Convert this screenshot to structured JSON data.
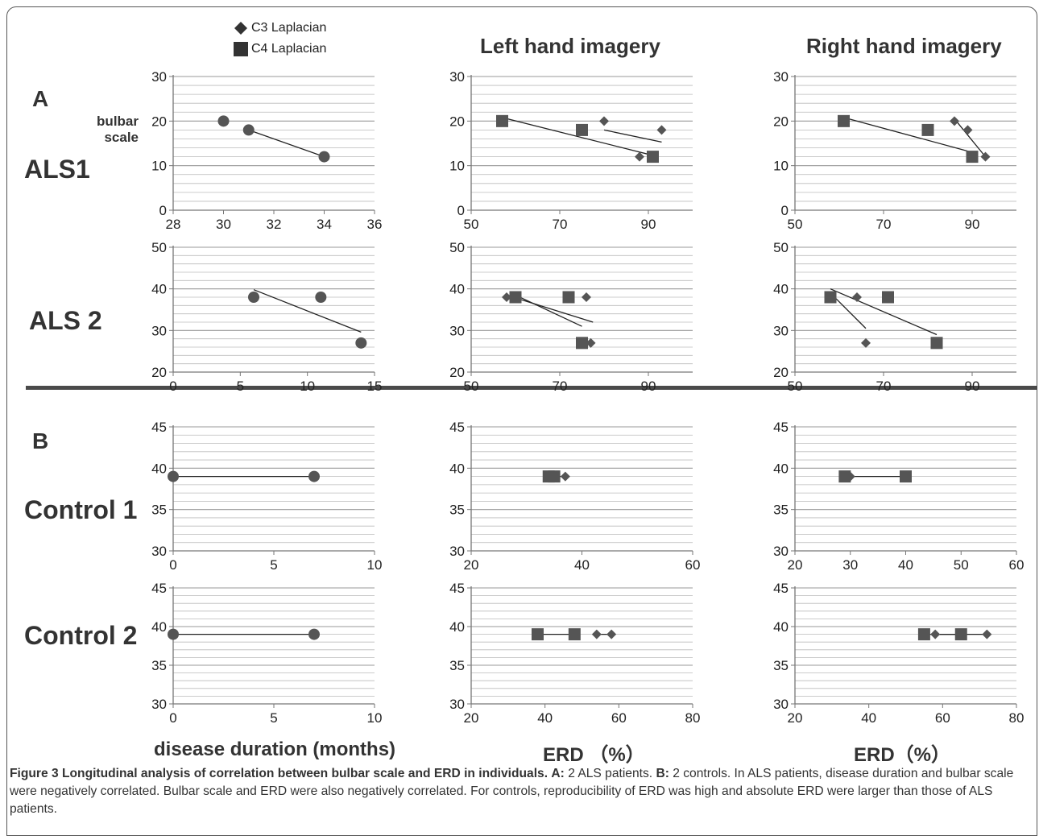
{
  "legend": {
    "items": [
      {
        "label": "C3 Laplacian",
        "marker": "diamond"
      },
      {
        "label": "C4 Laplacian",
        "marker": "square"
      }
    ]
  },
  "column_titles": [
    "Left hand imagery",
    "Right hand imagery"
  ],
  "section_labels": [
    "A",
    "B"
  ],
  "row_labels": [
    "ALS1",
    "ALS 2",
    "Control 1",
    "Control 2"
  ],
  "y_axis_label": "bulbar\nscale",
  "x_axis_labels": [
    "disease duration (months)",
    "ERD （%）",
    "ERD（%）"
  ],
  "caption": {
    "title": "Figure 3 Longitudinal analysis of correlation between bulbar scale and ERD in individuals.",
    "a_label": "A:",
    "a_text": " 2 ALS patients. ",
    "b_label": "B:",
    "b_text": " 2 controls. In ALS patients, disease duration and bulbar scale were negatively correlated. Bulbar scale and ERD were also negatively correlated. For controls, reproducibility of ERD was high and absolute ERD were larger than those of ALS patients."
  },
  "colors": {
    "marker": "#555555",
    "grid": "#bbbbbb",
    "axis": "#777777",
    "trend": "#222222"
  },
  "chart_data": [
    {
      "id": "als1-duration",
      "type": "scatter",
      "xlim": [
        28,
        36
      ],
      "xticks": [
        28,
        30,
        32,
        34,
        36
      ],
      "ylim": [
        0,
        30
      ],
      "yticks": [
        0,
        10,
        20,
        30
      ],
      "grid": true,
      "series": [
        {
          "marker": "circle",
          "points": [
            [
              30,
              20
            ],
            [
              31,
              18
            ],
            [
              34,
              12
            ]
          ],
          "trend": [
            [
              31,
              18
            ],
            [
              34,
              12
            ]
          ]
        }
      ]
    },
    {
      "id": "als1-left",
      "type": "scatter",
      "xlim": [
        50,
        100
      ],
      "xticks": [
        50,
        70,
        90
      ],
      "ylim": [
        0,
        30
      ],
      "yticks": [
        0,
        10,
        20,
        30
      ],
      "grid": true,
      "series": [
        {
          "name": "C3 Laplacian",
          "marker": "diamond",
          "points": [
            [
              80,
              20
            ],
            [
              93,
              18
            ],
            [
              88,
              12
            ]
          ],
          "trend": [
            [
              80,
              18
            ],
            [
              93,
              15.3
            ]
          ]
        },
        {
          "name": "C4 Laplacian",
          "marker": "square",
          "points": [
            [
              57,
              20
            ],
            [
              75,
              18
            ],
            [
              91,
              12
            ]
          ],
          "trend": [
            [
              57,
              20.8
            ],
            [
              91,
              12.3
            ]
          ]
        }
      ]
    },
    {
      "id": "als1-right",
      "type": "scatter",
      "xlim": [
        50,
        100
      ],
      "xticks": [
        50,
        70,
        90
      ],
      "ylim": [
        0,
        30
      ],
      "yticks": [
        0,
        10,
        20,
        30
      ],
      "grid": true,
      "series": [
        {
          "name": "C3 Laplacian",
          "marker": "diamond",
          "points": [
            [
              86,
              20
            ],
            [
              89,
              18
            ],
            [
              93,
              12
            ]
          ],
          "trend": [
            [
              86,
              20.5
            ],
            [
              93,
              12
            ]
          ]
        },
        {
          "name": "C4 Laplacian",
          "marker": "square",
          "points": [
            [
              61,
              20
            ],
            [
              80,
              18
            ],
            [
              90,
              12
            ]
          ],
          "trend": [
            [
              61,
              20.8
            ],
            [
              90,
              13
            ]
          ]
        }
      ]
    },
    {
      "id": "als2-duration",
      "type": "scatter",
      "xlim": [
        0,
        15
      ],
      "xticks": [
        0,
        5,
        10,
        15
      ],
      "ylim": [
        20,
        50
      ],
      "yticks": [
        20,
        30,
        40,
        50
      ],
      "grid": true,
      "series": [
        {
          "marker": "circle",
          "points": [
            [
              6,
              38
            ],
            [
              11,
              38
            ],
            [
              14,
              27
            ]
          ],
          "trend": [
            [
              6,
              39.8
            ],
            [
              14,
              29.6
            ]
          ]
        }
      ]
    },
    {
      "id": "als2-left",
      "type": "scatter",
      "xlim": [
        50,
        100
      ],
      "xticks": [
        50,
        70,
        90
      ],
      "ylim": [
        20,
        50
      ],
      "yticks": [
        20,
        30,
        40,
        50
      ],
      "grid": true,
      "series": [
        {
          "name": "C3 Laplacian",
          "marker": "diamond",
          "points": [
            [
              58,
              38
            ],
            [
              76,
              38
            ],
            [
              77,
              27
            ]
          ],
          "trend": [
            [
              58,
              38.5
            ],
            [
              77.5,
              32
            ]
          ]
        },
        {
          "name": "C4 Laplacian",
          "marker": "square",
          "points": [
            [
              60,
              38
            ],
            [
              72,
              38
            ],
            [
              75,
              27
            ]
          ],
          "trend": [
            [
              60,
              38.5
            ],
            [
              75,
              31
            ]
          ]
        }
      ]
    },
    {
      "id": "als2-right",
      "type": "scatter",
      "xlim": [
        50,
        100
      ],
      "xticks": [
        50,
        70,
        90
      ],
      "ylim": [
        20,
        50
      ],
      "yticks": [
        20,
        30,
        40,
        50
      ],
      "grid": true,
      "series": [
        {
          "name": "C3 Laplacian",
          "marker": "diamond",
          "points": [
            [
              64,
              38
            ],
            [
              66,
              27
            ]
          ],
          "trend": [
            [
              58,
              39
            ],
            [
              66,
              30.5
            ]
          ]
        },
        {
          "name": "C4 Laplacian",
          "marker": "square",
          "points": [
            [
              58,
              38
            ],
            [
              71,
              38
            ],
            [
              82,
              27
            ]
          ],
          "trend": [
            [
              58,
              40
            ],
            [
              82,
              29
            ]
          ]
        }
      ]
    },
    {
      "id": "control1-duration",
      "type": "scatter",
      "xlim": [
        0,
        10
      ],
      "xticks": [
        0,
        5,
        10
      ],
      "ylim": [
        30,
        45
      ],
      "yticks": [
        30,
        35,
        40,
        45
      ],
      "grid": true,
      "series": [
        {
          "marker": "circle",
          "points": [
            [
              0,
              39
            ],
            [
              7,
              39
            ]
          ],
          "trend": [
            [
              0,
              39
            ],
            [
              7,
              39
            ]
          ]
        }
      ]
    },
    {
      "id": "control1-left",
      "type": "scatter",
      "xlim": [
        20,
        60
      ],
      "xticks": [
        20,
        40,
        60
      ],
      "ylim": [
        30,
        45
      ],
      "yticks": [
        30,
        35,
        40,
        45
      ],
      "grid": true,
      "series": [
        {
          "name": "C3 Laplacian",
          "marker": "diamond",
          "points": [
            [
              35,
              39
            ],
            [
              37,
              39
            ]
          ],
          "trend": [
            [
              35,
              39
            ],
            [
              37,
              39
            ]
          ]
        },
        {
          "name": "C4 Laplacian",
          "marker": "square",
          "points": [
            [
              34,
              39
            ],
            [
              35,
              39
            ]
          ],
          "trend": [
            [
              34,
              39
            ],
            [
              35,
              39
            ]
          ]
        }
      ]
    },
    {
      "id": "control1-right",
      "type": "scatter",
      "xlim": [
        20,
        60
      ],
      "xticks": [
        20,
        30,
        40,
        50,
        60
      ],
      "ylim": [
        30,
        45
      ],
      "yticks": [
        30,
        35,
        40,
        45
      ],
      "grid": true,
      "series": [
        {
          "name": "C3 Laplacian",
          "marker": "diamond",
          "points": [
            [
              30,
              39
            ]
          ],
          "trend": [
            [
              29,
              39
            ],
            [
              30,
              39
            ]
          ]
        },
        {
          "name": "C4 Laplacian",
          "marker": "square",
          "points": [
            [
              29,
              39
            ],
            [
              40,
              39
            ]
          ],
          "trend": [
            [
              29,
              39
            ],
            [
              40,
              39
            ]
          ]
        }
      ]
    },
    {
      "id": "control2-duration",
      "type": "scatter",
      "xlim": [
        0,
        10
      ],
      "xticks": [
        0,
        5,
        10
      ],
      "ylim": [
        30,
        45
      ],
      "yticks": [
        30,
        35,
        40,
        45
      ],
      "grid": true,
      "series": [
        {
          "marker": "circle",
          "points": [
            [
              0,
              39
            ],
            [
              7,
              39
            ]
          ],
          "trend": [
            [
              0,
              39
            ],
            [
              7,
              39
            ]
          ]
        }
      ]
    },
    {
      "id": "control2-left",
      "type": "scatter",
      "xlim": [
        20,
        80
      ],
      "xticks": [
        20,
        40,
        60,
        80
      ],
      "ylim": [
        30,
        45
      ],
      "yticks": [
        30,
        35,
        40,
        45
      ],
      "grid": true,
      "series": [
        {
          "name": "C3 Laplacian",
          "marker": "diamond",
          "points": [
            [
              54,
              39
            ],
            [
              58,
              39
            ]
          ],
          "trend": [
            [
              54,
              39
            ],
            [
              58,
              39
            ]
          ]
        },
        {
          "name": "C4 Laplacian",
          "marker": "square",
          "points": [
            [
              38,
              39
            ],
            [
              48,
              39
            ]
          ],
          "trend": [
            [
              38,
              39
            ],
            [
              48,
              39
            ]
          ]
        }
      ]
    },
    {
      "id": "control2-right",
      "type": "scatter",
      "xlim": [
        20,
        80
      ],
      "xticks": [
        20,
        40,
        60,
        80
      ],
      "ylim": [
        30,
        45
      ],
      "yticks": [
        30,
        35,
        40,
        45
      ],
      "grid": true,
      "series": [
        {
          "name": "C3 Laplacian",
          "marker": "diamond",
          "points": [
            [
              58,
              39
            ],
            [
              72,
              39
            ]
          ],
          "trend": [
            [
              58,
              39
            ],
            [
              72,
              39
            ]
          ]
        },
        {
          "name": "C4 Laplacian",
          "marker": "square",
          "points": [
            [
              55,
              39
            ],
            [
              65,
              39
            ]
          ],
          "trend": [
            [
              55,
              39
            ],
            [
              65,
              39
            ]
          ]
        }
      ]
    }
  ]
}
